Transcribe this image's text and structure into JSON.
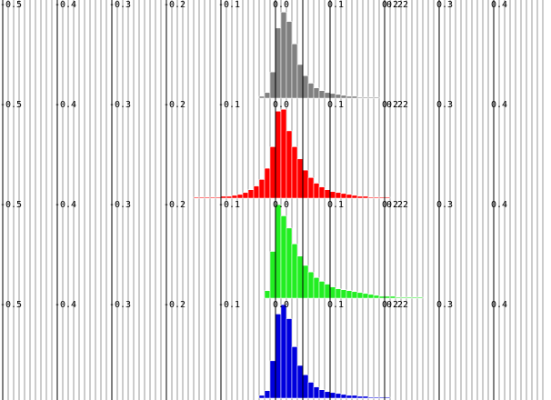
{
  "chart_data": [
    {
      "type": "histogram",
      "color": "#808080",
      "bins": [
        -0.15,
        -0.14,
        -0.13,
        -0.12,
        -0.11,
        -0.1,
        -0.09,
        -0.08,
        -0.07,
        -0.06,
        -0.05,
        -0.04,
        -0.03,
        -0.02,
        -0.01,
        0,
        0.01,
        0.02,
        0.03,
        0.04,
        0.05,
        0.06,
        0.07,
        0.08,
        0.09,
        0.1,
        0.11,
        0.12,
        0.13,
        0.14,
        0.15,
        0.16,
        0.17,
        0.18,
        0.19,
        0.2,
        0.21,
        0.22,
        0.23,
        0.24,
        0.25,
        0.26,
        0.27
      ],
      "values": [
        0,
        0,
        0,
        0,
        0,
        0,
        0,
        0,
        0,
        0,
        0,
        0,
        2,
        6,
        28,
        75,
        92,
        82,
        58,
        36,
        24,
        16,
        11,
        8,
        6,
        5,
        4,
        3,
        2,
        2,
        1,
        1,
        1,
        1,
        0,
        0,
        0,
        0,
        0,
        0,
        0,
        0
      ],
      "xlim": [
        -0.505,
        0.505
      ],
      "ylim": [
        0,
        105
      ],
      "xticks": [
        -0.5,
        -0.4,
        -0.3,
        -0.2,
        -0.1,
        {
          "value": 0,
          "label": "0.0"
        },
        0.1,
        0.2,
        0.3,
        0.4
      ],
      "minor_xticks": [
        -0.49,
        -0.48,
        -0.47,
        -0.46,
        -0.45,
        -0.44,
        -0.43,
        -0.42,
        -0.41,
        -0.39,
        -0.38,
        -0.37,
        -0.36,
        -0.35,
        -0.34,
        -0.33,
        -0.32,
        -0.31,
        -0.29,
        -0.28,
        -0.27,
        -0.26,
        -0.25,
        -0.24,
        -0.23,
        -0.22,
        -0.21,
        -0.19,
        -0.18,
        -0.17,
        -0.16,
        -0.15,
        -0.14,
        -0.13,
        -0.12,
        -0.11,
        -0.09,
        -0.08,
        -0.07,
        -0.06,
        -0.05,
        -0.04,
        -0.03,
        -0.02,
        -0.01,
        0.01,
        0.02,
        0.03,
        0.04,
        0.05,
        0.06,
        0.07,
        0.08,
        0.09,
        0.11,
        0.12,
        0.13,
        0.14,
        0.15,
        0.16,
        0.17,
        0.18,
        0.19,
        0.21,
        0.22,
        0.23,
        0.24,
        0.25,
        0.26,
        0.27,
        0.28,
        0.29,
        0.31,
        0.32,
        0.33,
        0.34,
        0.35,
        0.36,
        0.37,
        0.38,
        0.39,
        0.41,
        0.42,
        0.43,
        0.44,
        0.45,
        0.46,
        0.47,
        0.48,
        0.49
      ],
      "vline": 0.05,
      "annotation": {
        "text": "0.22",
        "x": 0.22
      }
    },
    {
      "type": "histogram",
      "color": "#ff0000",
      "bins": [
        -0.15,
        -0.14,
        -0.13,
        -0.12,
        -0.11,
        -0.1,
        -0.09,
        -0.08,
        -0.07,
        -0.06,
        -0.05,
        -0.04,
        -0.03,
        -0.02,
        -0.01,
        0,
        0.01,
        0.02,
        0.03,
        0.04,
        0.05,
        0.06,
        0.07,
        0.08,
        0.09,
        0.1,
        0.11,
        0.12,
        0.13,
        0.14,
        0.15,
        0.16,
        0.17,
        0.18,
        0.19,
        0.2,
        0.21,
        0.22,
        0.23,
        0.24,
        0.25,
        0.26,
        0.27
      ],
      "values": [
        1,
        1,
        1,
        1,
        1,
        2,
        2,
        3,
        4,
        6,
        9,
        13,
        20,
        32,
        55,
        93,
        95,
        72,
        55,
        42,
        30,
        22,
        16,
        12,
        9,
        7,
        6,
        5,
        4,
        3,
        2,
        2,
        1,
        1,
        1,
        1,
        0,
        0,
        0,
        0,
        0,
        0
      ],
      "xlim": [
        -0.505,
        0.505
      ],
      "ylim": [
        0,
        105
      ],
      "xticks": [
        -0.5,
        -0.4,
        -0.3,
        -0.2,
        -0.1,
        {
          "value": 0,
          "label": "0.0"
        },
        0.1,
        0.2,
        0.3,
        0.4
      ],
      "minor_xticks": [
        -0.49,
        -0.48,
        -0.47,
        -0.46,
        -0.45,
        -0.44,
        -0.43,
        -0.42,
        -0.41,
        -0.39,
        -0.38,
        -0.37,
        -0.36,
        -0.35,
        -0.34,
        -0.33,
        -0.32,
        -0.31,
        -0.29,
        -0.28,
        -0.27,
        -0.26,
        -0.25,
        -0.24,
        -0.23,
        -0.22,
        -0.21,
        -0.19,
        -0.18,
        -0.17,
        -0.16,
        -0.15,
        -0.14,
        -0.13,
        -0.12,
        -0.11,
        -0.09,
        -0.08,
        -0.07,
        -0.06,
        -0.05,
        -0.04,
        -0.03,
        -0.02,
        -0.01,
        0.01,
        0.02,
        0.03,
        0.04,
        0.05,
        0.06,
        0.07,
        0.08,
        0.09,
        0.11,
        0.12,
        0.13,
        0.14,
        0.15,
        0.16,
        0.17,
        0.18,
        0.19,
        0.21,
        0.22,
        0.23,
        0.24,
        0.25,
        0.26,
        0.27,
        0.28,
        0.29,
        0.31,
        0.32,
        0.33,
        0.34,
        0.35,
        0.36,
        0.37,
        0.38,
        0.39,
        0.41,
        0.42,
        0.43,
        0.44,
        0.45,
        0.46,
        0.47,
        0.48,
        0.49
      ],
      "vline": 0.05,
      "annotation": {
        "text": "0.22",
        "x": 0.22
      }
    },
    {
      "type": "histogram",
      "color": "#22ee22",
      "bins": [
        -0.15,
        -0.14,
        -0.13,
        -0.12,
        -0.11,
        -0.1,
        -0.09,
        -0.08,
        -0.07,
        -0.06,
        -0.05,
        -0.04,
        -0.03,
        -0.02,
        -0.01,
        0,
        0.01,
        0.02,
        0.03,
        0.04,
        0.05,
        0.06,
        0.07,
        0.08,
        0.09,
        0.1,
        0.11,
        0.12,
        0.13,
        0.14,
        0.15,
        0.16,
        0.17,
        0.18,
        0.19,
        0.2,
        0.21,
        0.22,
        0.23,
        0.24,
        0.25,
        0.26,
        0.27
      ],
      "values": [
        0,
        0,
        0,
        0,
        0,
        0,
        0,
        0,
        0,
        0,
        0,
        0,
        0,
        8,
        50,
        100,
        88,
        75,
        58,
        45,
        35,
        28,
        22,
        18,
        15,
        12,
        10,
        9,
        8,
        7,
        6,
        5,
        4,
        3,
        2,
        2,
        2,
        1,
        1,
        1,
        1,
        1
      ],
      "xlim": [
        -0.505,
        0.505
      ],
      "ylim": [
        0,
        105
      ],
      "xticks": [
        -0.5,
        -0.4,
        -0.3,
        -0.2,
        -0.1,
        {
          "value": 0,
          "label": "0.0"
        },
        0.1,
        0.2,
        0.3,
        0.4
      ],
      "minor_xticks": [
        -0.49,
        -0.48,
        -0.47,
        -0.46,
        -0.45,
        -0.44,
        -0.43,
        -0.42,
        -0.41,
        -0.39,
        -0.38,
        -0.37,
        -0.36,
        -0.35,
        -0.34,
        -0.33,
        -0.32,
        -0.31,
        -0.29,
        -0.28,
        -0.27,
        -0.26,
        -0.25,
        -0.24,
        -0.23,
        -0.22,
        -0.21,
        -0.19,
        -0.18,
        -0.17,
        -0.16,
        -0.15,
        -0.14,
        -0.13,
        -0.12,
        -0.11,
        -0.09,
        -0.08,
        -0.07,
        -0.06,
        -0.05,
        -0.04,
        -0.03,
        -0.02,
        -0.01,
        0.01,
        0.02,
        0.03,
        0.04,
        0.05,
        0.06,
        0.07,
        0.08,
        0.09,
        0.11,
        0.12,
        0.13,
        0.14,
        0.15,
        0.16,
        0.17,
        0.18,
        0.19,
        0.21,
        0.22,
        0.23,
        0.24,
        0.25,
        0.26,
        0.27,
        0.28,
        0.29,
        0.31,
        0.32,
        0.33,
        0.34,
        0.35,
        0.36,
        0.37,
        0.38,
        0.39,
        0.41,
        0.42,
        0.43,
        0.44,
        0.45,
        0.46,
        0.47,
        0.48,
        0.49
      ],
      "vline": 0.05,
      "annotation": {
        "text": "0.22",
        "x": 0.22
      }
    },
    {
      "type": "histogram",
      "color": "#0000dd",
      "bins": [
        -0.15,
        -0.14,
        -0.13,
        -0.12,
        -0.11,
        -0.1,
        -0.09,
        -0.08,
        -0.07,
        -0.06,
        -0.05,
        -0.04,
        -0.03,
        -0.02,
        -0.01,
        0,
        0.01,
        0.02,
        0.03,
        0.04,
        0.05,
        0.06,
        0.07,
        0.08,
        0.09,
        0.1,
        0.11,
        0.12,
        0.13,
        0.14,
        0.15,
        0.16,
        0.17,
        0.18,
        0.19,
        0.2,
        0.21,
        0.22,
        0.23,
        0.24,
        0.25,
        0.26,
        0.27
      ],
      "values": [
        0,
        0,
        0,
        0,
        0,
        0,
        0,
        0,
        0,
        0,
        0,
        0,
        3,
        8,
        40,
        90,
        100,
        85,
        55,
        35,
        25,
        17,
        12,
        9,
        7,
        6,
        5,
        4,
        3,
        3,
        2,
        2,
        1,
        1,
        1,
        1,
        0,
        0,
        0,
        0,
        0,
        0
      ],
      "xlim": [
        -0.505,
        0.505
      ],
      "ylim": [
        0,
        105
      ],
      "xticks": [
        -0.5,
        -0.4,
        -0.3,
        -0.2,
        -0.1,
        {
          "value": 0,
          "label": "0.0"
        },
        0.1,
        0.2,
        0.3,
        0.4
      ],
      "minor_xticks": [
        -0.49,
        -0.48,
        -0.47,
        -0.46,
        -0.45,
        -0.44,
        -0.43,
        -0.42,
        -0.41,
        -0.39,
        -0.38,
        -0.37,
        -0.36,
        -0.35,
        -0.34,
        -0.33,
        -0.32,
        -0.31,
        -0.29,
        -0.28,
        -0.27,
        -0.26,
        -0.25,
        -0.24,
        -0.23,
        -0.22,
        -0.21,
        -0.19,
        -0.18,
        -0.17,
        -0.16,
        -0.15,
        -0.14,
        -0.13,
        -0.12,
        -0.11,
        -0.09,
        -0.08,
        -0.07,
        -0.06,
        -0.05,
        -0.04,
        -0.03,
        -0.02,
        -0.01,
        0.01,
        0.02,
        0.03,
        0.04,
        0.05,
        0.06,
        0.07,
        0.08,
        0.09,
        0.11,
        0.12,
        0.13,
        0.14,
        0.15,
        0.16,
        0.17,
        0.18,
        0.19,
        0.21,
        0.22,
        0.23,
        0.24,
        0.25,
        0.26,
        0.27,
        0.28,
        0.29,
        0.31,
        0.32,
        0.33,
        0.34,
        0.35,
        0.36,
        0.37,
        0.38,
        0.39,
        0.41,
        0.42,
        0.43,
        0.44,
        0.45,
        0.46,
        0.47,
        0.48,
        0.49
      ],
      "vline": 0.05,
      "annotation": {
        "text": "0.22",
        "x": 0.22
      }
    }
  ]
}
